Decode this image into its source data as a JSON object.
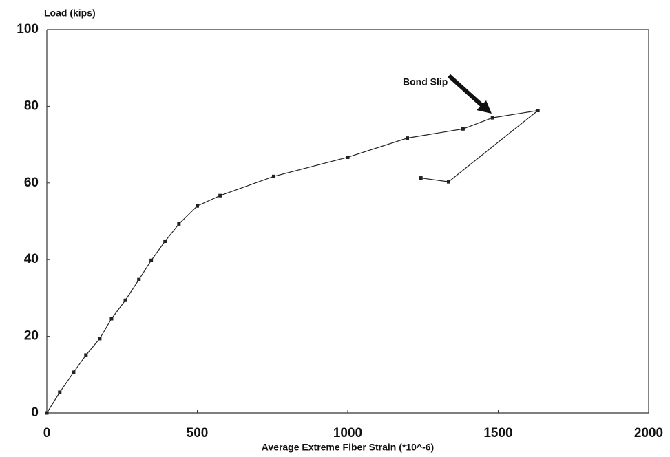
{
  "chart_data": {
    "type": "line",
    "y_label": "Load (kips)",
    "x_label": "Average Extreme Fiber Strain (*10^-6)",
    "annotation": "Bond Slip",
    "x": [
      0,
      43,
      89,
      130,
      176,
      215,
      261,
      306,
      347,
      393,
      439,
      500,
      576,
      754,
      1000,
      1198,
      1383,
      1481,
      1632,
      1335,
      1243
    ],
    "series": [
      {
        "color": "#222222",
        "values": [
          0,
          5.4,
          10.6,
          15.1,
          19.4,
          24.6,
          29.4,
          34.8,
          39.8,
          44.8,
          49.3,
          54,
          56.7,
          61.7,
          66.7,
          71.7,
          74.1,
          77,
          78.9,
          60.3,
          61.3
        ]
      }
    ],
    "xlim": [
      0,
      2000
    ],
    "xticks": [
      0,
      500,
      1000,
      1500,
      2000
    ],
    "ylim": [
      0,
      100
    ],
    "yticks": [
      0,
      20,
      40,
      60,
      80,
      100
    ],
    "grid": false
  }
}
